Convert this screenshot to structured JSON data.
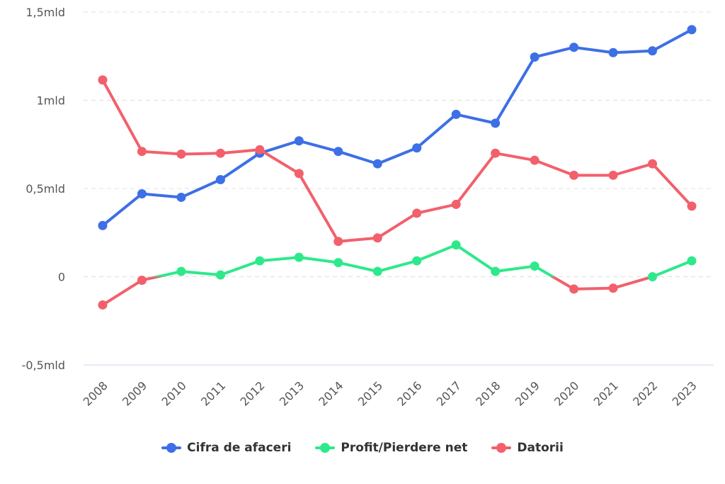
{
  "chart_data": {
    "type": "line",
    "title": "",
    "xlabel": "",
    "ylabel": "",
    "x": [
      "2008",
      "2009",
      "2010",
      "2011",
      "2012",
      "2013",
      "2014",
      "2015",
      "2016",
      "2017",
      "2018",
      "2019",
      "2020",
      "2021",
      "2022",
      "2023"
    ],
    "ylim": [
      -0.5,
      1.5
    ],
    "yticks": [
      -0.5,
      0,
      0.5,
      1,
      1.5
    ],
    "ytick_labels": [
      "-0,5mld",
      "0",
      "0,5mld",
      "1mld",
      "1,5mld"
    ],
    "grid": true,
    "legend_position": "bottom",
    "unit": "billion",
    "series": [
      {
        "name": "Cifra de afaceri",
        "color": "#3d6fe6",
        "values": [
          0.29,
          0.47,
          0.45,
          0.55,
          0.7,
          0.77,
          0.71,
          0.64,
          0.73,
          0.92,
          0.87,
          1.245,
          1.3,
          1.27,
          1.28,
          1.4
        ]
      },
      {
        "name": "Profit/Pierdere net",
        "color": "#2ee98b",
        "negative_color": "#f2606c",
        "values": [
          -0.16,
          -0.02,
          0.03,
          0.01,
          0.09,
          0.11,
          0.08,
          0.03,
          0.09,
          0.18,
          0.03,
          0.06,
          -0.07,
          -0.065,
          0.0,
          0.09
        ]
      },
      {
        "name": "Datorii",
        "color": "#f2606c",
        "values": [
          1.115,
          0.71,
          0.695,
          0.7,
          0.72,
          0.585,
          0.2,
          0.22,
          0.36,
          0.41,
          0.7,
          0.66,
          0.575,
          0.575,
          0.64,
          0.4
        ]
      }
    ]
  }
}
